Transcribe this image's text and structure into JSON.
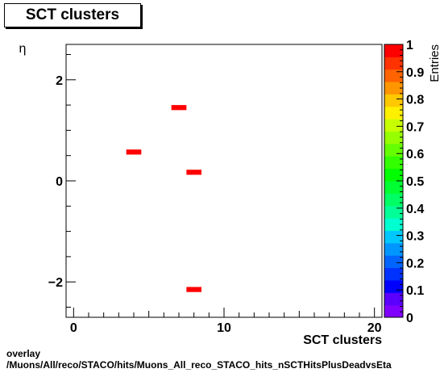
{
  "chart_data": {
    "type": "heatmap",
    "title": "SCT clusters",
    "xlabel": "SCT clusters",
    "ylabel": "η",
    "zlabel": "Entries",
    "xlim": [
      -0.5,
      20.5
    ],
    "ylim": [
      -2.7,
      2.7
    ],
    "zlim": [
      0,
      1
    ],
    "x_ticks": [
      0,
      10,
      20
    ],
    "y_ticks": [
      -2,
      0,
      2
    ],
    "z_ticks": [
      "0",
      "0.1",
      "0.2",
      "0.3",
      "0.4",
      "0.5",
      "0.6",
      "0.7",
      "0.8",
      "0.9",
      "1"
    ],
    "bin_width_x": 1.0,
    "bin_height_y": 0.1,
    "cells": [
      {
        "x": 7,
        "y": 1.45,
        "value": 1
      },
      {
        "x": 4,
        "y": 0.57,
        "value": 1
      },
      {
        "x": 8,
        "y": 0.17,
        "value": 1
      },
      {
        "x": 8,
        "y": -2.15,
        "value": 1
      }
    ],
    "palette": [
      "#7f00ff",
      "#5a00ff",
      "#0000ff",
      "#0032ff",
      "#0064ff",
      "#0096ff",
      "#00c8ff",
      "#00ffd0",
      "#00ff96",
      "#00ff64",
      "#00ff32",
      "#00ff00",
      "#32ff00",
      "#64ff00",
      "#96ff00",
      "#c8ff00",
      "#fff000",
      "#ffc800",
      "#ff9600",
      "#ff6400",
      "#ff3200",
      "#ff0000"
    ],
    "cell_color": "#ff0000"
  },
  "footer": {
    "line1": "overlay",
    "line2": "/Muons/All/reco/STACO/hits/Muons_All_reco_STACO_hits_nSCTHitsPlusDeadvsEta"
  }
}
